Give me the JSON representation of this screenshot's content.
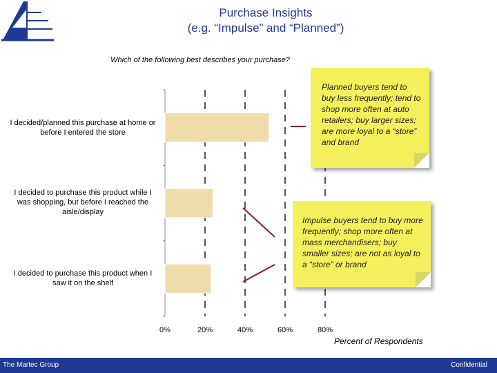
{
  "header": {
    "title_line1": "Purchase Insights",
    "title_line2": "(e.g. “Impulse” and “Planned”)"
  },
  "question": "Which of the following best describes your purchase?",
  "notes": {
    "planned": "Planned buyers tend to buy less frequently; tend to shop more often at auto retailers; buy larger sizes; are more loyal to a “store” and brand",
    "impulse": "Impulse buyers tend to buy more frequently; shop more often at mass merchandisers; buy smaller sizes; are not as loyal to a “store” or brand"
  },
  "footer": {
    "left": "The Martec Group",
    "right": "Confidential"
  },
  "colors": {
    "bar": "#eedcaa",
    "title": "#1f3a93",
    "footer": "#1f3a93",
    "note": "#f4f05b",
    "connector": "#8b1a2b"
  },
  "chart_data": {
    "type": "bar",
    "orientation": "horizontal",
    "categories": [
      "I decided/planned this purchase at home or before I entered the store",
      "I decided to purchase this product while I was shopping, but before I reached the aisle/display",
      "I decided to purchase this product when I saw it on the shelf"
    ],
    "values": [
      52,
      24,
      23
    ],
    "value_unit": "percent",
    "xlim": [
      0,
      80
    ],
    "xticks": [
      "0%",
      "20%",
      "40%",
      "60%",
      "80%"
    ],
    "xlabel": "Percent of Respondents",
    "grid": "vertical dashed",
    "legend": "none"
  }
}
